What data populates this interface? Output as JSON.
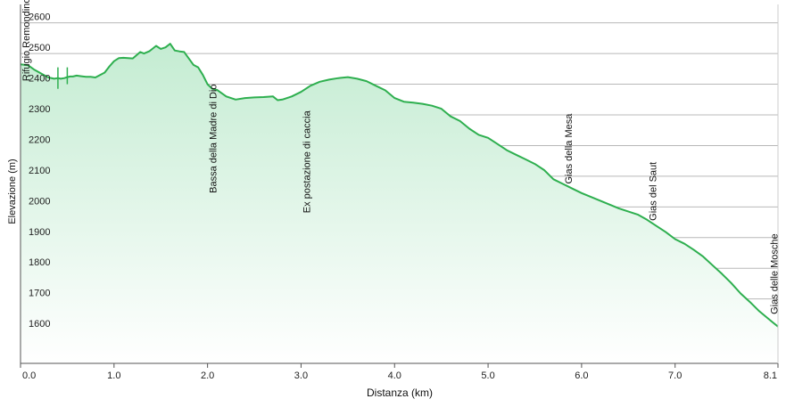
{
  "chart_data": {
    "type": "area",
    "title": "",
    "xlabel": "Distanza  (km)",
    "ylabel": "Elevazione (m)",
    "xlim": [
      0,
      8.1
    ],
    "ylim": [
      1490,
      2660
    ],
    "x_ticks": [
      0,
      1,
      2,
      3,
      4,
      5,
      6,
      7,
      8.1
    ],
    "x_tick_labels": [
      "0.0",
      "1.0",
      "2.0",
      "3.0",
      "4.0",
      "5.0",
      "6.0",
      "7.0",
      "8.1"
    ],
    "y_ticks": [
      1600,
      1700,
      1800,
      1900,
      2000,
      2100,
      2200,
      2300,
      2400,
      2500,
      2600
    ],
    "y_tick_labels": [
      "1600",
      "1700",
      "1800",
      "1900",
      "2000",
      "2100",
      "2200",
      "2300",
      "2400",
      "2500",
      "2600"
    ],
    "grid": true,
    "colors": {
      "line": "#2eaf4f",
      "fill_top": "#c4ecd2",
      "fill_bottom": "#ffffff",
      "grid": "#b8b8b8",
      "axis": "#555555"
    },
    "series": [
      {
        "x": [
          0,
          0.08,
          0.15,
          0.25,
          0.3,
          0.36,
          0.4,
          0.43,
          0.47,
          0.5,
          0.53,
          0.56,
          0.6,
          0.65,
          0.7,
          0.75,
          0.8,
          0.9,
          0.95,
          1.0,
          1.05,
          1.1,
          1.2,
          1.28,
          1.32,
          1.38,
          1.45,
          1.5,
          1.55,
          1.6,
          1.65,
          1.7,
          1.75,
          1.85,
          1.9,
          1.95,
          2.0,
          2.05,
          2.1,
          2.2,
          2.3,
          2.4,
          2.5,
          2.6,
          2.7,
          2.75,
          2.8,
          2.9,
          3.0,
          3.1,
          3.2,
          3.3,
          3.4,
          3.5,
          3.6,
          3.7,
          3.8,
          3.9,
          4.0,
          4.1,
          4.2,
          4.3,
          4.4,
          4.5,
          4.6,
          4.7,
          4.8,
          4.9,
          5.0,
          5.1,
          5.2,
          5.3,
          5.4,
          5.5,
          5.6,
          5.7,
          5.8,
          5.9,
          6.0,
          6.2,
          6.4,
          6.6,
          6.7,
          6.8,
          6.9,
          7.0,
          7.1,
          7.2,
          7.3,
          7.4,
          7.5,
          7.6,
          7.7,
          7.8,
          7.9,
          8.0,
          8.05,
          8.1
        ],
        "y": [
          2465,
          2462,
          2447,
          2430,
          2422,
          2418,
          2420,
          2418,
          2420,
          2423,
          2425,
          2425,
          2428,
          2426,
          2424,
          2424,
          2422,
          2438,
          2458,
          2475,
          2485,
          2486,
          2484,
          2505,
          2500,
          2508,
          2525,
          2515,
          2520,
          2532,
          2510,
          2507,
          2505,
          2463,
          2455,
          2430,
          2400,
          2385,
          2382,
          2360,
          2350,
          2355,
          2357,
          2358,
          2360,
          2348,
          2350,
          2360,
          2375,
          2395,
          2408,
          2415,
          2420,
          2423,
          2418,
          2410,
          2395,
          2380,
          2355,
          2343,
          2340,
          2336,
          2330,
          2320,
          2295,
          2280,
          2255,
          2235,
          2225,
          2205,
          2185,
          2170,
          2155,
          2140,
          2120,
          2090,
          2075,
          2060,
          2045,
          2020,
          1995,
          1975,
          1958,
          1938,
          1918,
          1895,
          1880,
          1860,
          1838,
          1810,
          1782,
          1752,
          1718,
          1690,
          1660,
          1635,
          1622,
          1610
        ]
      }
    ],
    "spikes": [
      {
        "x": 0.4,
        "y_low": 2385,
        "y_high": 2455
      },
      {
        "x": 0.5,
        "y_low": 2400,
        "y_high": 2455
      }
    ],
    "waypoints": [
      {
        "x": 0.0,
        "label": "Rifugio Remondino",
        "y_bottom": 2410
      },
      {
        "x": 2.0,
        "label": "Bassa della Madre di Dio",
        "y_bottom": 2045
      },
      {
        "x": 3.0,
        "label": "Ex postazione di caccia",
        "y_bottom": 1980
      },
      {
        "x": 5.8,
        "label": "Gias della Mesa",
        "y_bottom": 2075
      },
      {
        "x": 6.7,
        "label": "Gias del Saut",
        "y_bottom": 1955
      },
      {
        "x": 8.0,
        "label": "Gias delle Mosche",
        "y_bottom": 1650
      }
    ]
  }
}
